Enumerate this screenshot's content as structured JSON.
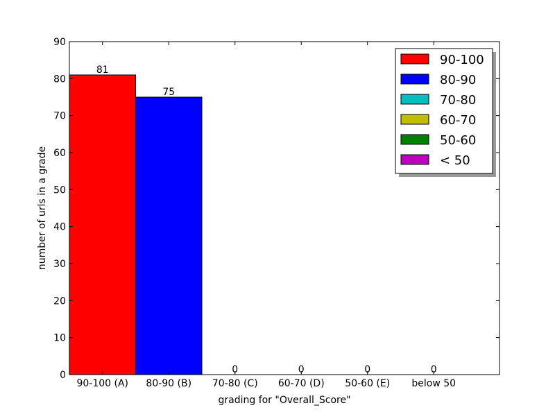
{
  "chart_data": {
    "type": "bar",
    "categories": [
      "90-100 (A)",
      "80-90 (B)",
      "70-80 (C)",
      "60-70 (D)",
      "50-60 (E)",
      "below 50"
    ],
    "values": [
      81,
      75,
      0,
      0,
      0,
      0
    ],
    "data_labels": [
      "81",
      "75",
      "0",
      "0",
      "0",
      "0"
    ],
    "bar_colors": [
      "#ff0000",
      "#0000ff",
      "#00bfbf",
      "#bfbf00",
      "#008000",
      "#bf00bf"
    ],
    "title": "",
    "xlabel": "grading for \"Overall_Score\"",
    "ylabel": "number of urls in a grade",
    "ylim": [
      0,
      90
    ],
    "yticks": [
      0,
      10,
      20,
      30,
      40,
      50,
      60,
      70,
      80,
      90
    ],
    "grid": false,
    "legend": {
      "placement": "top-right",
      "shadow": true,
      "entries": [
        {
          "label": "90-100",
          "color": "#ff0000"
        },
        {
          "label": "80-90",
          "color": "#0000ff"
        },
        {
          "label": "70-80",
          "color": "#00bfbf"
        },
        {
          "label": "60-70",
          "color": "#bfbf00"
        },
        {
          "label": "50-60",
          "color": "#008000"
        },
        {
          "label": "< 50",
          "color": "#bf00bf"
        }
      ]
    }
  }
}
